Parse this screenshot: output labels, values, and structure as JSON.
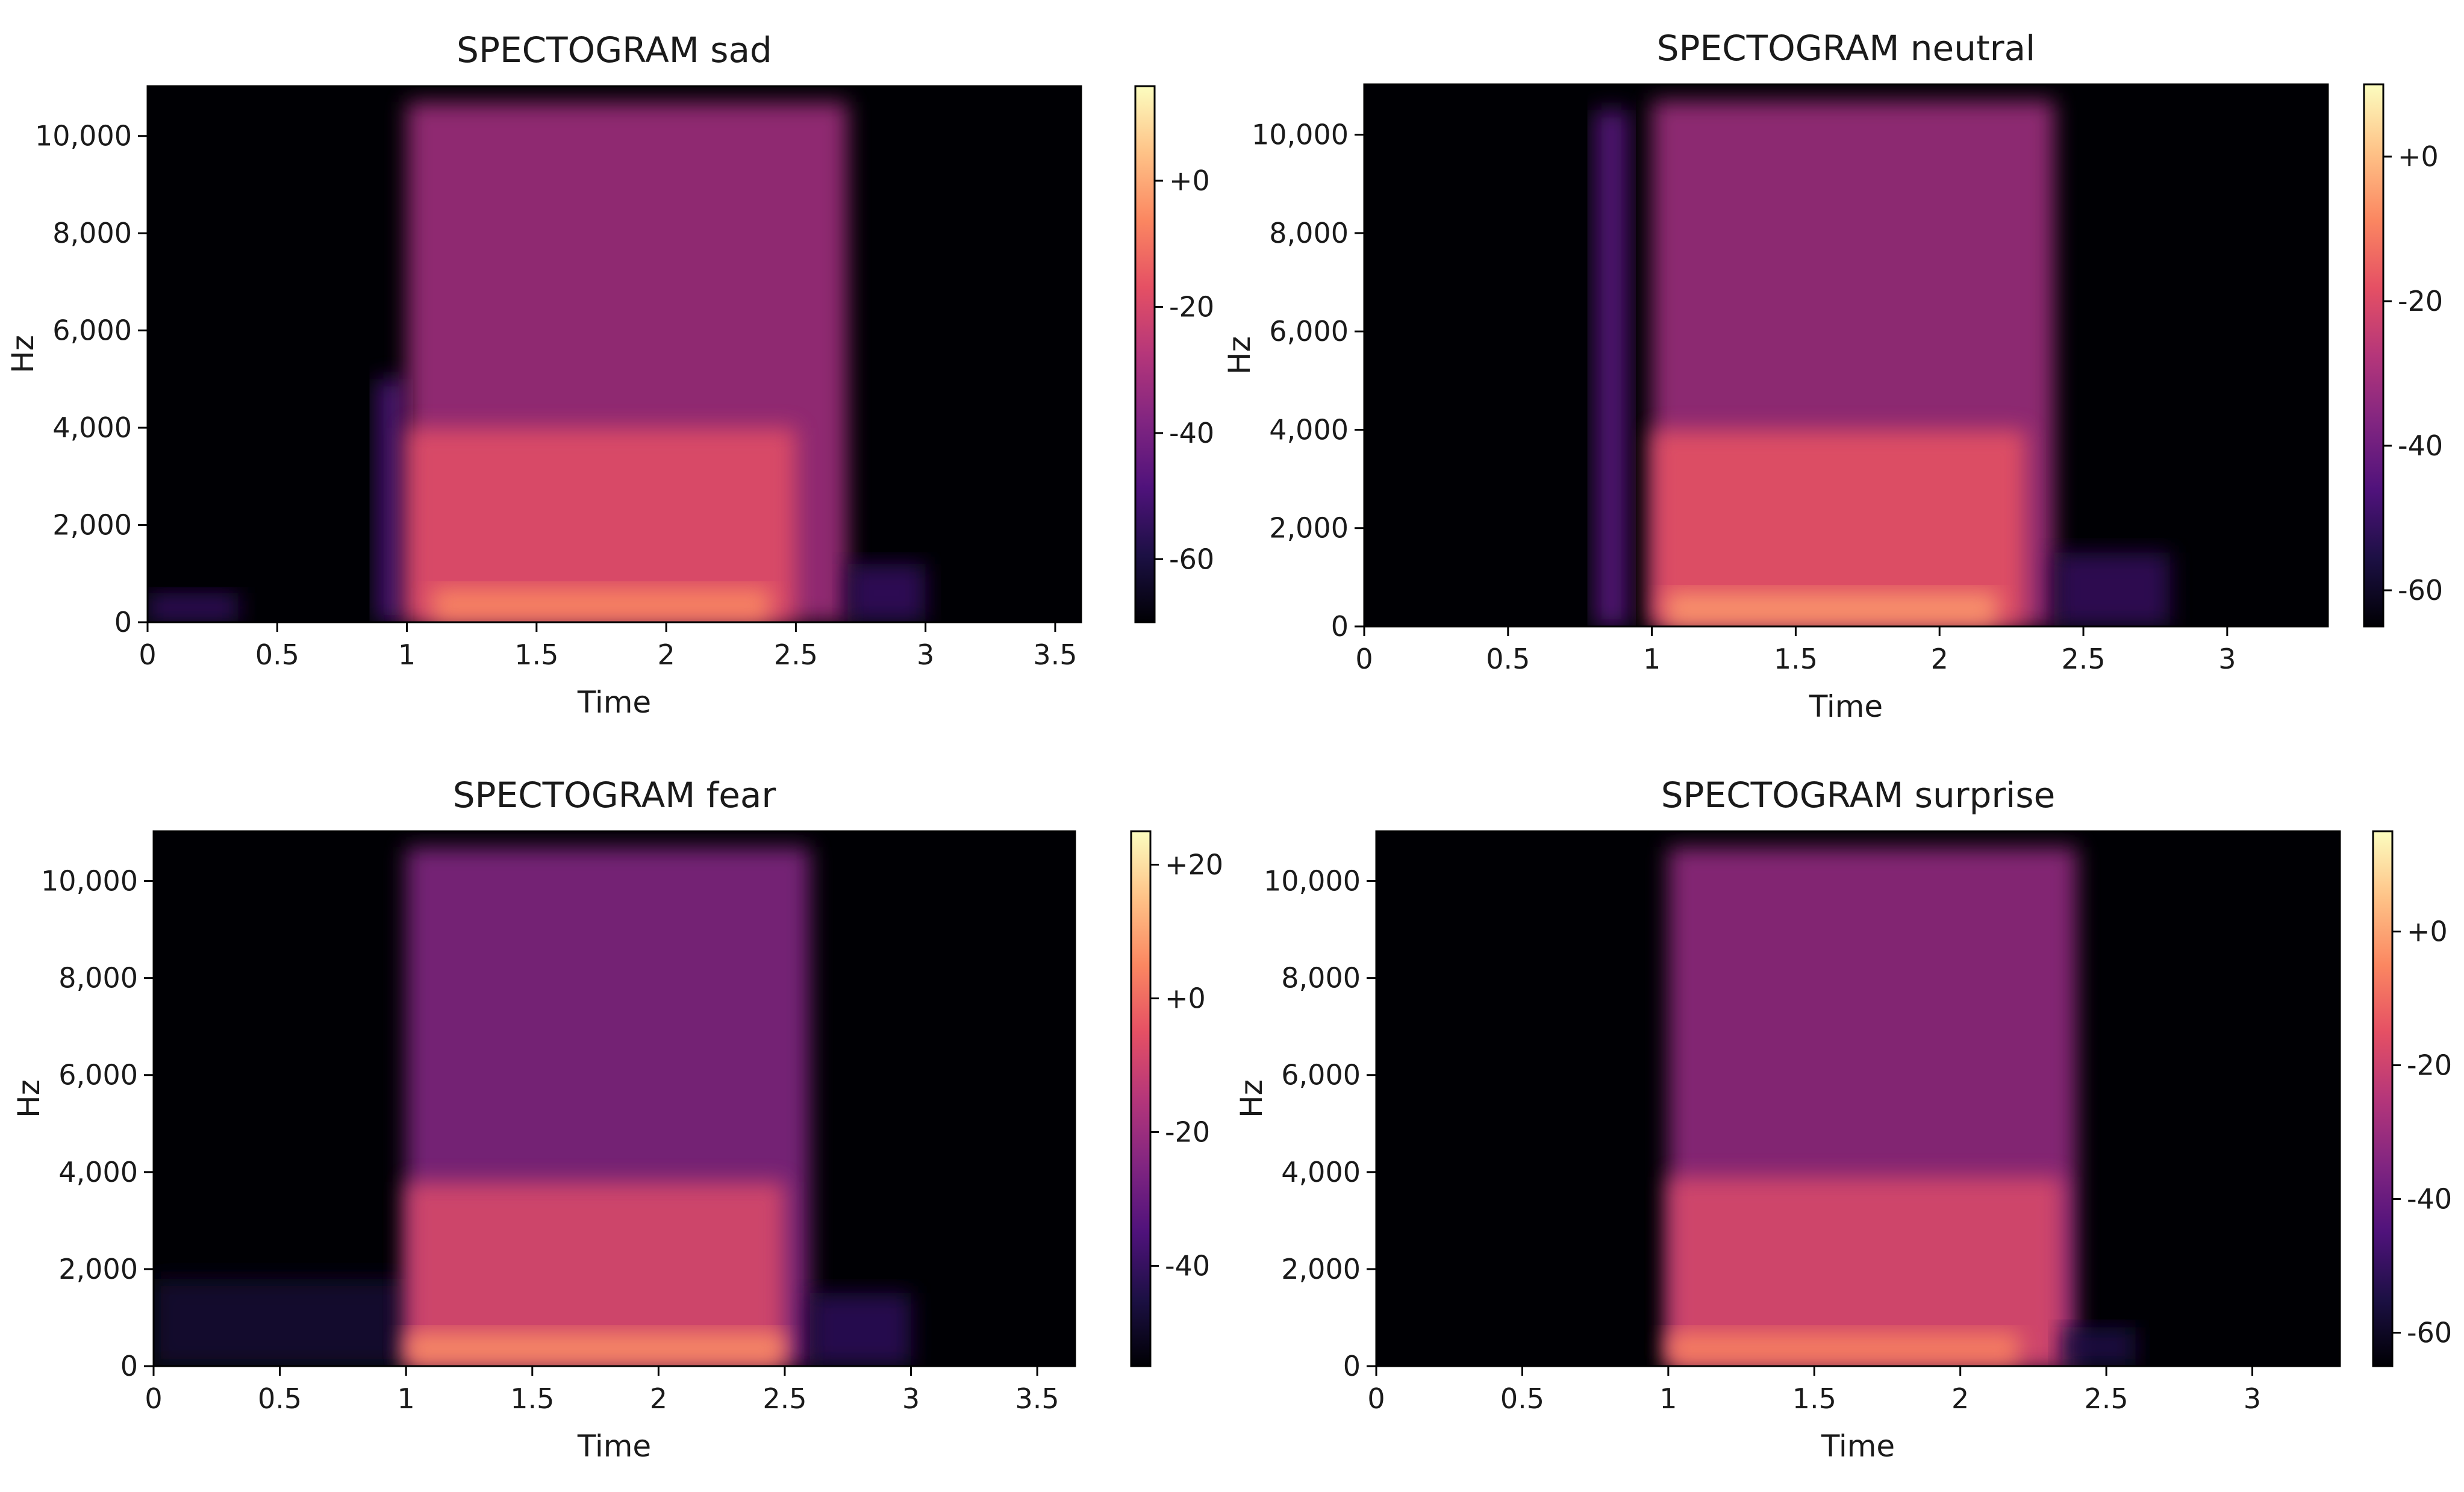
{
  "chart_data": [
    {
      "type": "heatmap",
      "title": "SPECTOGRAM sad",
      "xlabel": "Time",
      "ylabel": "Hz",
      "x_ticks": [
        0,
        0.5,
        1,
        1.5,
        2,
        2.5,
        3,
        3.5
      ],
      "x_tick_labels": [
        "0",
        "0.5",
        "1",
        "1.5",
        "2",
        "2.5",
        "3",
        "3.5"
      ],
      "xlim": [
        0,
        3.6
      ],
      "y_ticks": [
        0,
        2000,
        4000,
        6000,
        8000,
        10000
      ],
      "y_tick_labels": [
        "0",
        "2,000",
        "4,000",
        "6,000",
        "8,000",
        "10,000"
      ],
      "ylim": [
        0,
        11025
      ],
      "colorbar": {
        "range": [
          -70,
          15
        ],
        "ticks": [
          0,
          -20,
          -40,
          -60
        ],
        "tick_labels": [
          "+0",
          "-20",
          "-40",
          "-60"
        ]
      },
      "colormap": [
        "#000004",
        "#1c1044",
        "#4f127b",
        "#812581",
        "#b5367a",
        "#e55064",
        "#fb8761",
        "#fec287",
        "#fcfdbf"
      ],
      "energy_regions": [
        {
          "t_start": 0.0,
          "t_end": 0.35,
          "f_max": 600,
          "level": -55
        },
        {
          "t_start": 0.88,
          "t_end": 1.0,
          "f_max": 5000,
          "level": -50
        },
        {
          "t_start": 1.0,
          "t_end": 2.7,
          "f_max": 10700,
          "level": -32
        },
        {
          "t_start": 1.0,
          "t_end": 2.5,
          "f_max": 4000,
          "level": -18
        },
        {
          "t_start": 1.1,
          "t_end": 2.4,
          "f_max": 700,
          "level": -6
        },
        {
          "t_start": 2.7,
          "t_end": 3.0,
          "f_max": 1200,
          "level": -55
        }
      ]
    },
    {
      "type": "heatmap",
      "title": "SPECTOGRAM neutral",
      "xlabel": "Time",
      "ylabel": "Hz",
      "x_ticks": [
        0,
        0.5,
        1,
        1.5,
        2,
        2.5,
        3
      ],
      "x_tick_labels": [
        "0",
        "0.5",
        "1",
        "1.5",
        "2",
        "2.5",
        "3"
      ],
      "xlim": [
        0,
        3.35
      ],
      "y_ticks": [
        0,
        2000,
        4000,
        6000,
        8000,
        10000
      ],
      "y_tick_labels": [
        "0",
        "2,000",
        "4,000",
        "6,000",
        "8,000",
        "10,000"
      ],
      "ylim": [
        0,
        11025
      ],
      "colorbar": {
        "range": [
          -65,
          10
        ],
        "ticks": [
          0,
          -20,
          -40,
          -60
        ],
        "tick_labels": [
          "+0",
          "-20",
          "-40",
          "-60"
        ]
      },
      "colormap": [
        "#000004",
        "#1c1044",
        "#4f127b",
        "#812581",
        "#b5367a",
        "#e55064",
        "#fb8761",
        "#fec287",
        "#fcfdbf"
      ],
      "energy_regions": [
        {
          "t_start": 0.8,
          "t_end": 0.92,
          "f_max": 10500,
          "level": -45
        },
        {
          "t_start": 1.0,
          "t_end": 2.4,
          "f_max": 10700,
          "level": -32
        },
        {
          "t_start": 1.0,
          "t_end": 2.3,
          "f_max": 4000,
          "level": -18
        },
        {
          "t_start": 1.05,
          "t_end": 2.2,
          "f_max": 700,
          "level": -6
        },
        {
          "t_start": 2.4,
          "t_end": 2.8,
          "f_max": 1500,
          "level": -52
        }
      ]
    },
    {
      "type": "heatmap",
      "title": "SPECTOGRAM fear",
      "xlabel": "Time",
      "ylabel": "Hz",
      "x_ticks": [
        0,
        0.5,
        1,
        1.5,
        2,
        2.5,
        3,
        3.5
      ],
      "x_tick_labels": [
        "0",
        "0.5",
        "1",
        "1.5",
        "2",
        "2.5",
        "3",
        "3.5"
      ],
      "xlim": [
        0,
        3.65
      ],
      "y_ticks": [
        0,
        2000,
        4000,
        6000,
        8000,
        10000
      ],
      "y_tick_labels": [
        "0",
        "2,000",
        "4,000",
        "6,000",
        "8,000",
        "10,000"
      ],
      "ylim": [
        0,
        11025
      ],
      "colorbar": {
        "range": [
          -55,
          25
        ],
        "ticks": [
          20,
          0,
          -20,
          -40
        ],
        "tick_labels": [
          "+20",
          "+0",
          "-20",
          "-40"
        ]
      },
      "colormap": [
        "#000004",
        "#1c1044",
        "#4f127b",
        "#812581",
        "#b5367a",
        "#e55064",
        "#fb8761",
        "#fec287",
        "#fcfdbf"
      ],
      "energy_regions": [
        {
          "t_start": 0.0,
          "t_end": 1.0,
          "f_max": 1800,
          "level": -48
        },
        {
          "t_start": 1.0,
          "t_end": 2.6,
          "f_max": 10700,
          "level": -25
        },
        {
          "t_start": 1.0,
          "t_end": 2.5,
          "f_max": 3800,
          "level": -8
        },
        {
          "t_start": 1.0,
          "t_end": 2.5,
          "f_max": 700,
          "level": 6
        },
        {
          "t_start": 2.6,
          "t_end": 3.0,
          "f_max": 1500,
          "level": -42
        }
      ]
    },
    {
      "type": "heatmap",
      "title": "SPECTOGRAM surprise",
      "xlabel": "Time",
      "ylabel": "Hz",
      "x_ticks": [
        0,
        0.5,
        1,
        1.5,
        2,
        2.5,
        3
      ],
      "x_tick_labels": [
        "0",
        "0.5",
        "1",
        "1.5",
        "2",
        "2.5",
        "3"
      ],
      "xlim": [
        0,
        3.3
      ],
      "y_ticks": [
        0,
        2000,
        4000,
        6000,
        8000,
        10000
      ],
      "y_tick_labels": [
        "0",
        "2,000",
        "4,000",
        "6,000",
        "8,000",
        "10,000"
      ],
      "ylim": [
        0,
        11025
      ],
      "colorbar": {
        "range": [
          -65,
          15
        ],
        "ticks": [
          0,
          -20,
          -40,
          -60
        ],
        "tick_labels": [
          "+0",
          "-20",
          "-40",
          "-60"
        ]
      },
      "colormap": [
        "#000004",
        "#1c1044",
        "#4f127b",
        "#812581",
        "#b5367a",
        "#e55064",
        "#fb8761",
        "#fec287",
        "#fcfdbf"
      ],
      "energy_regions": [
        {
          "t_start": 1.0,
          "t_end": 2.4,
          "f_max": 10700,
          "level": -32
        },
        {
          "t_start": 1.0,
          "t_end": 2.35,
          "f_max": 3900,
          "level": -18
        },
        {
          "t_start": 1.0,
          "t_end": 2.2,
          "f_max": 700,
          "level": -6
        },
        {
          "t_start": 2.35,
          "t_end": 2.6,
          "f_max": 800,
          "level": -55
        }
      ]
    }
  ]
}
